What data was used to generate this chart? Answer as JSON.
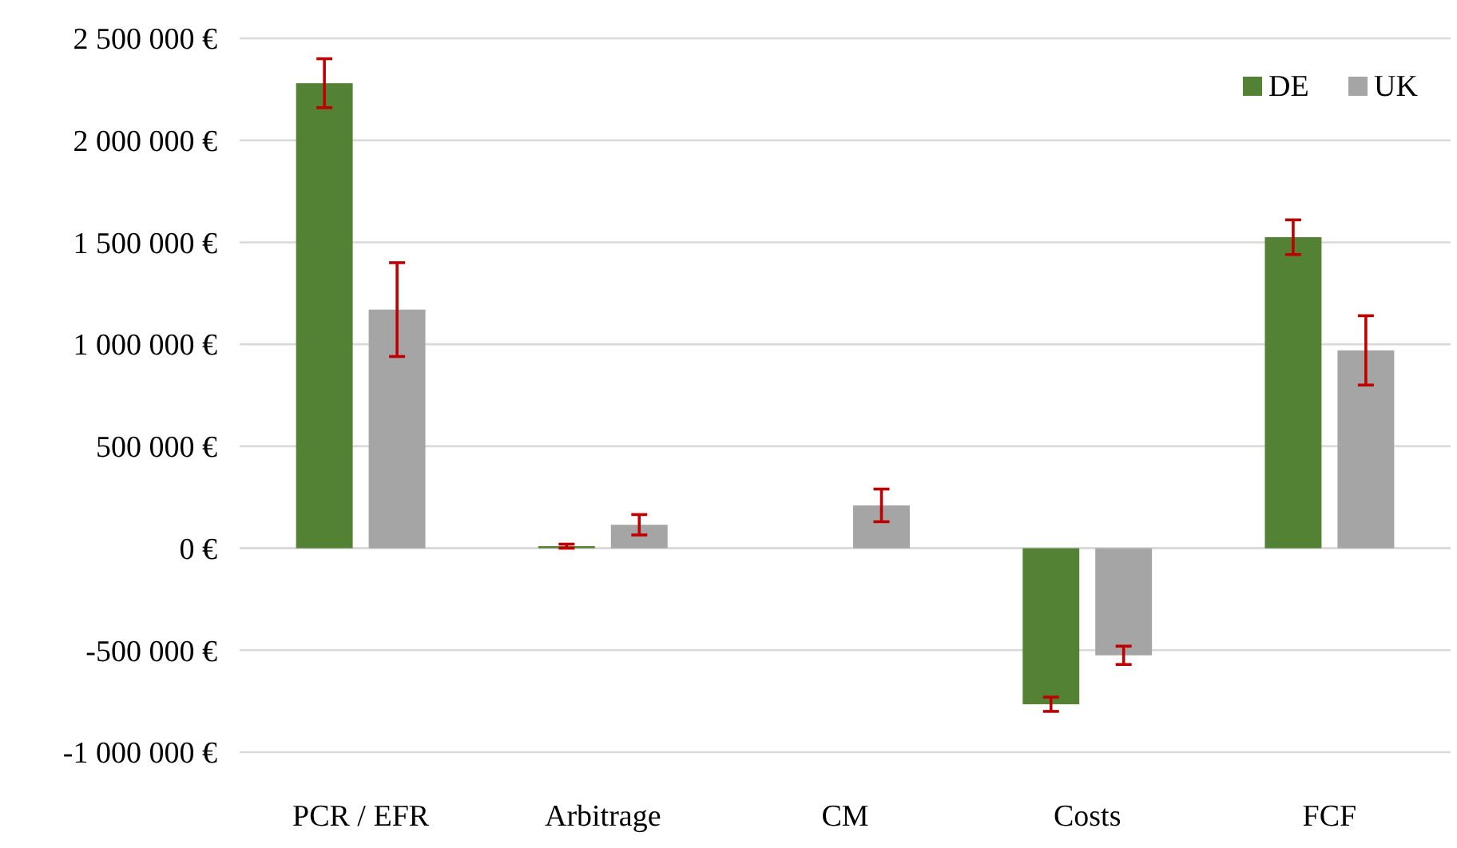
{
  "chart_data": {
    "type": "bar",
    "categories": [
      "PCR / EFR",
      "Arbitrage",
      "CM",
      "Costs",
      "FCF"
    ],
    "series": [
      {
        "name": "DE",
        "color": "#548235",
        "values": [
          2280000,
          10000,
          null,
          -765000,
          1525000
        ],
        "errors": [
          120000,
          10000,
          null,
          35000,
          85000
        ]
      },
      {
        "name": "UK",
        "color": "#a5a5a5",
        "values": [
          1170000,
          115000,
          210000,
          -525000,
          970000
        ],
        "errors": [
          230000,
          50000,
          80000,
          45000,
          170000
        ]
      }
    ],
    "ylim": [
      -1000000,
      2500000
    ],
    "yticks": [
      {
        "value": -1000000,
        "label": "-1 000 000 €"
      },
      {
        "value": -500000,
        "label": "-500 000 €"
      },
      {
        "value": 0,
        "label": "0 €"
      },
      {
        "value": 500000,
        "label": "500 000 €"
      },
      {
        "value": 1000000,
        "label": "1 000 000 €"
      },
      {
        "value": 1500000,
        "label": "1 500 000 €"
      },
      {
        "value": 2000000,
        "label": "2 000 000 €"
      },
      {
        "value": 2500000,
        "label": "2 500 000 €"
      }
    ],
    "grid": "y",
    "legend": "top right"
  }
}
